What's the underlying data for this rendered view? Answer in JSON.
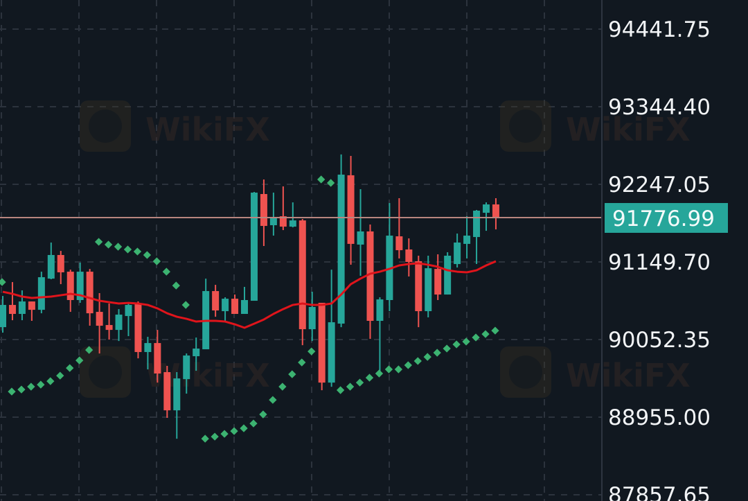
{
  "chart_data": {
    "type": "candlestick",
    "title": "",
    "xlabel": "",
    "ylabel": "",
    "ylim": [
      87770,
      94853
    ],
    "grid": true,
    "y_ticks": [
      "94441.75",
      "93344.40",
      "92247.05",
      "91149.70",
      "90052.35",
      "88955.00",
      "87857.65"
    ],
    "last_price": "91776.99",
    "watermark": "WikiFX",
    "colors": {
      "background": "#111820",
      "up": "#26a69a",
      "down": "#ef5350",
      "ma": "#e0141b",
      "psar": "#3cb371",
      "last_line": "#b8857f",
      "last_label_bg": "#26a69a",
      "grid": "#2c333d"
    },
    "candles": [
      [
        90228,
        90669,
        90150,
        90542
      ],
      [
        90542,
        90865,
        90326,
        90415
      ],
      [
        90415,
        90748,
        90326,
        90591
      ],
      [
        90591,
        90591,
        90317,
        90473
      ],
      [
        90473,
        91012,
        90424,
        90934
      ],
      [
        90914,
        91424,
        90905,
        91248
      ],
      [
        91248,
        91306,
        90836,
        91003
      ],
      [
        91012,
        91041,
        90444,
        90611
      ],
      [
        90611,
        91140,
        90572,
        91012
      ],
      [
        91012,
        91051,
        90248,
        90424
      ],
      [
        90444,
        90709,
        89856,
        90248
      ],
      [
        90258,
        90562,
        90052,
        90189
      ],
      [
        90189,
        90483,
        90032,
        90405
      ],
      [
        90385,
        90581,
        90101,
        90542
      ],
      [
        90562,
        90591,
        89787,
        89876
      ],
      [
        89876,
        90091,
        89631,
        90003
      ],
      [
        90003,
        90189,
        89444,
        89572
      ],
      [
        89592,
        89680,
        88945,
        89052
      ],
      [
        89052,
        89592,
        88651,
        89503
      ],
      [
        89493,
        89856,
        89288,
        89827
      ],
      [
        89817,
        90081,
        89611,
        89925
      ],
      [
        89915,
        90914,
        89915,
        90738
      ],
      [
        90738,
        90826,
        90375,
        90464
      ],
      [
        90454,
        90650,
        90307,
        90630
      ],
      [
        90630,
        90689,
        90415,
        90415
      ],
      [
        90415,
        90797,
        90415,
        90611
      ],
      [
        90601,
        92139,
        90601,
        92130
      ],
      [
        92110,
        92316,
        91375,
        91659
      ],
      [
        91669,
        92130,
        91522,
        91767
      ],
      [
        91796,
        92218,
        91600,
        91649
      ],
      [
        91649,
        91992,
        91639,
        91737
      ],
      [
        91737,
        91757,
        89973,
        90199
      ],
      [
        90199,
        90728,
        90032,
        90513
      ],
      [
        90572,
        90572,
        89336,
        89444
      ],
      [
        89444,
        91041,
        89385,
        90297
      ],
      [
        90278,
        92669,
        90228,
        92384
      ],
      [
        92375,
        92649,
        91111,
        91405
      ],
      [
        91395,
        92178,
        90954,
        91581
      ],
      [
        91581,
        91679,
        90062,
        90317
      ],
      [
        90317,
        90650,
        89582,
        90620
      ],
      [
        90611,
        91982,
        90454,
        91522
      ],
      [
        91512,
        92051,
        91199,
        91316
      ],
      [
        91326,
        91483,
        90944,
        91150
      ],
      [
        91160,
        91238,
        90228,
        90454
      ],
      [
        90454,
        91238,
        90366,
        91061
      ],
      [
        91051,
        91258,
        90611,
        90689
      ],
      [
        90689,
        91287,
        90689,
        91238
      ],
      [
        91120,
        91551,
        91071,
        91424
      ],
      [
        91405,
        91796,
        91199,
        91522
      ],
      [
        91502,
        91884,
        91120,
        91875
      ],
      [
        91845,
        91992,
        91590,
        91963
      ],
      [
        91963,
        92051,
        91610,
        91777
      ]
    ],
    "candle_fields": [
      "open",
      "high",
      "low",
      "close"
    ],
    "moving_average": [
      90728,
      90699,
      90660,
      90640,
      90650,
      90660,
      90679,
      90699,
      90679,
      90640,
      90601,
      90581,
      90562,
      90571,
      90562,
      90542,
      90493,
      90424,
      90375,
      90346,
      90307,
      90317,
      90317,
      90307,
      90268,
      90219,
      90277,
      90336,
      90415,
      90483,
      90542,
      90562,
      90542,
      90542,
      90562,
      90689,
      90836,
      90914,
      90983,
      91012,
      91052,
      91101,
      91120,
      91130,
      91110,
      91081,
      91032,
      91012,
      91003,
      91032,
      91101,
      91159
    ],
    "parabolic_sar": [
      90865,
      89317,
      89346,
      89386,
      89415,
      89464,
      89542,
      89650,
      89758,
      89905,
      91434,
      91395,
      91365,
      91326,
      91297,
      91248,
      91159,
      91012,
      90816,
      90542,
      null,
      88651,
      88680,
      88719,
      88758,
      88798,
      88866,
      88994,
      89199,
      89386,
      89562,
      89729,
      89885,
      92316,
      92267,
      89337,
      89386,
      89444,
      89513,
      89572,
      89631,
      89631,
      89690,
      89749,
      89807,
      89866,
      89925,
      89984,
      90023,
      90082,
      90130,
      90179
    ]
  }
}
